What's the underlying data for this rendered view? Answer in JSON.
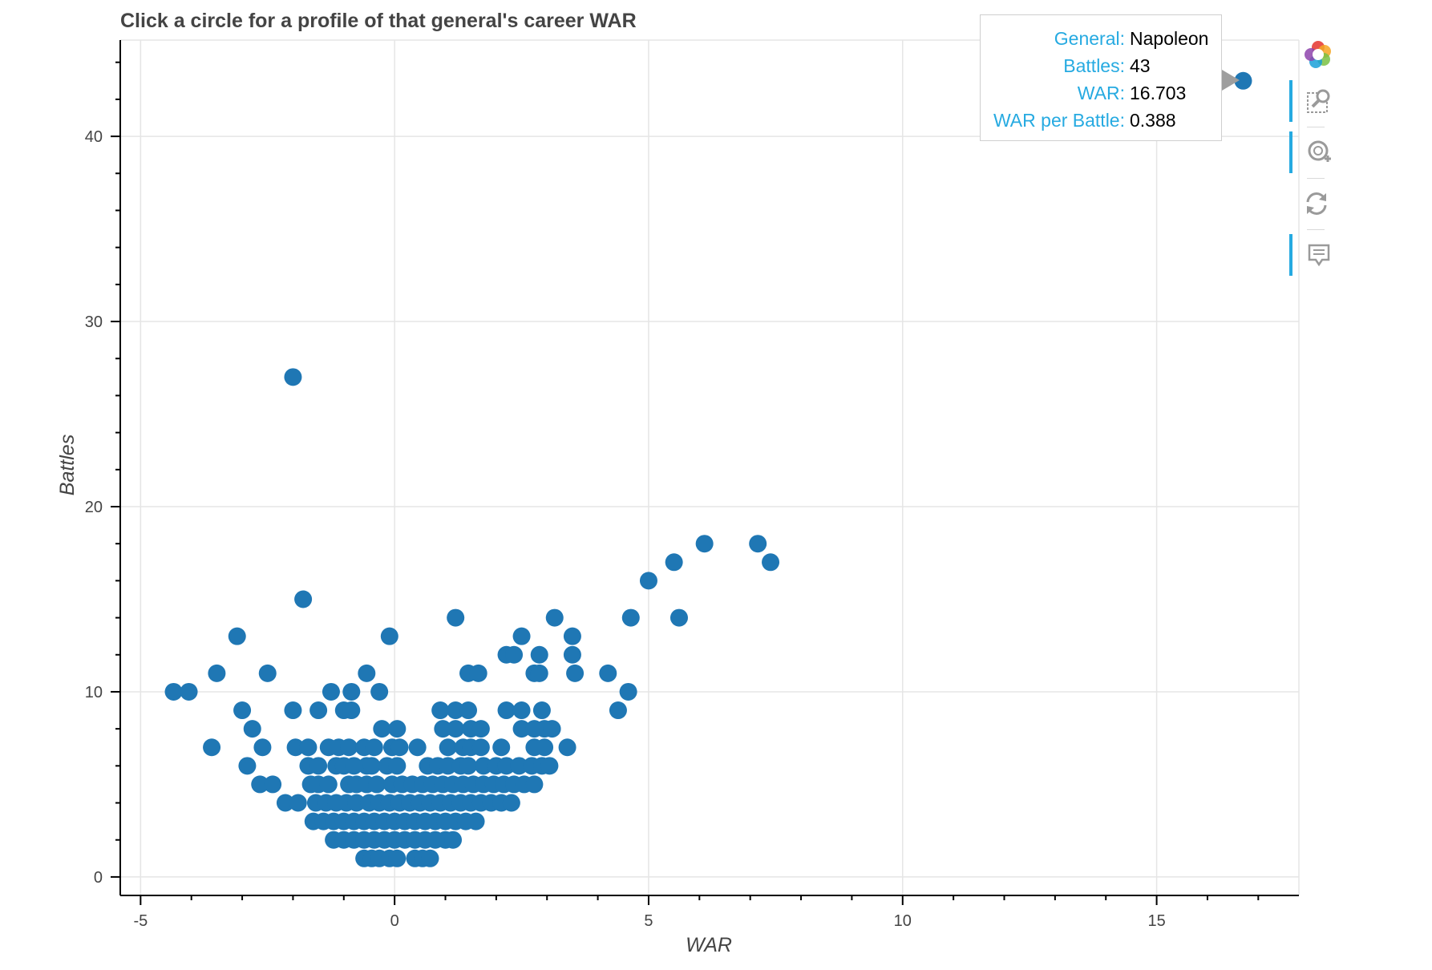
{
  "chart_data": {
    "type": "scatter",
    "title": "Click a circle for a profile of that general's career WAR",
    "xlabel": "WAR",
    "ylabel": "Battles",
    "xlim": [
      -5.4,
      17.8
    ],
    "ylim": [
      -1,
      45.2
    ],
    "xticks": [
      -5,
      0,
      5,
      10,
      15
    ],
    "yticks": [
      0,
      10,
      20,
      30,
      40
    ],
    "grid": true,
    "marker_color": "#1f77b4",
    "points": [
      [
        16.703,
        43
      ],
      [
        -2.0,
        27
      ],
      [
        -1.8,
        15
      ],
      [
        6.1,
        18
      ],
      [
        7.15,
        18
      ],
      [
        7.4,
        17
      ],
      [
        5.5,
        17
      ],
      [
        5.0,
        16
      ],
      [
        -0.1,
        13
      ],
      [
        -3.1,
        13
      ],
      [
        1.2,
        14
      ],
      [
        3.15,
        14
      ],
      [
        4.65,
        14
      ],
      [
        5.6,
        14
      ],
      [
        -3.5,
        11
      ],
      [
        -2.5,
        11
      ],
      [
        -0.55,
        11
      ],
      [
        1.45,
        11
      ],
      [
        1.65,
        11
      ],
      [
        2.75,
        11
      ],
      [
        2.85,
        11
      ],
      [
        3.55,
        11
      ],
      [
        4.2,
        11
      ],
      [
        -4.35,
        10
      ],
      [
        -4.05,
        10
      ],
      [
        -1.25,
        10
      ],
      [
        -0.85,
        10
      ],
      [
        -0.3,
        10
      ],
      [
        4.6,
        10
      ],
      [
        2.2,
        12
      ],
      [
        2.35,
        12
      ],
      [
        2.85,
        12
      ],
      [
        3.5,
        12
      ],
      [
        2.5,
        13
      ],
      [
        3.5,
        13
      ],
      [
        -3.0,
        9
      ],
      [
        -2.0,
        9
      ],
      [
        -1.5,
        9
      ],
      [
        -1.0,
        9
      ],
      [
        -0.85,
        9
      ],
      [
        0.9,
        9
      ],
      [
        1.2,
        9
      ],
      [
        1.45,
        9
      ],
      [
        2.2,
        9
      ],
      [
        2.5,
        9
      ],
      [
        2.9,
        9
      ],
      [
        4.4,
        9
      ],
      [
        -2.8,
        8
      ],
      [
        -0.25,
        8
      ],
      [
        0.05,
        8
      ],
      [
        0.95,
        8
      ],
      [
        1.2,
        8
      ],
      [
        1.5,
        8
      ],
      [
        1.7,
        8
      ],
      [
        2.5,
        8
      ],
      [
        2.75,
        8
      ],
      [
        2.95,
        8
      ],
      [
        3.1,
        8
      ],
      [
        -3.6,
        7
      ],
      [
        -2.6,
        7
      ],
      [
        -1.95,
        7
      ],
      [
        -1.7,
        7
      ],
      [
        -1.3,
        7
      ],
      [
        -1.1,
        7
      ],
      [
        -0.9,
        7
      ],
      [
        -0.6,
        7
      ],
      [
        -0.4,
        7
      ],
      [
        -0.05,
        7
      ],
      [
        0.1,
        7
      ],
      [
        0.45,
        7
      ],
      [
        1.05,
        7
      ],
      [
        1.35,
        7
      ],
      [
        1.5,
        7
      ],
      [
        1.7,
        7
      ],
      [
        2.1,
        7
      ],
      [
        2.75,
        7
      ],
      [
        2.95,
        7
      ],
      [
        3.4,
        7
      ],
      [
        -2.9,
        6
      ],
      [
        -1.7,
        6
      ],
      [
        -1.5,
        6
      ],
      [
        -1.15,
        6
      ],
      [
        -1.0,
        6
      ],
      [
        -0.8,
        6
      ],
      [
        -0.55,
        6
      ],
      [
        -0.45,
        6
      ],
      [
        -0.15,
        6
      ],
      [
        0.05,
        6
      ],
      [
        0.65,
        6
      ],
      [
        0.85,
        6
      ],
      [
        1.05,
        6
      ],
      [
        1.3,
        6
      ],
      [
        1.45,
        6
      ],
      [
        1.75,
        6
      ],
      [
        2.0,
        6
      ],
      [
        2.2,
        6
      ],
      [
        2.45,
        6
      ],
      [
        2.7,
        6
      ],
      [
        2.9,
        6
      ],
      [
        3.05,
        6
      ],
      [
        -2.65,
        5
      ],
      [
        -2.4,
        5
      ],
      [
        -1.65,
        5
      ],
      [
        -1.5,
        5
      ],
      [
        -1.3,
        5
      ],
      [
        -0.9,
        5
      ],
      [
        -0.75,
        5
      ],
      [
        -0.55,
        5
      ],
      [
        -0.35,
        5
      ],
      [
        -0.05,
        5
      ],
      [
        0.15,
        5
      ],
      [
        0.35,
        5
      ],
      [
        0.55,
        5
      ],
      [
        0.75,
        5
      ],
      [
        0.95,
        5
      ],
      [
        1.15,
        5
      ],
      [
        1.35,
        5
      ],
      [
        1.55,
        5
      ],
      [
        1.75,
        5
      ],
      [
        1.95,
        5
      ],
      [
        2.15,
        5
      ],
      [
        2.35,
        5
      ],
      [
        2.55,
        5
      ],
      [
        2.75,
        5
      ],
      [
        -2.15,
        4
      ],
      [
        -1.9,
        4
      ],
      [
        -1.55,
        4
      ],
      [
        -1.35,
        4
      ],
      [
        -1.15,
        4
      ],
      [
        -0.95,
        4
      ],
      [
        -0.75,
        4
      ],
      [
        -0.5,
        4
      ],
      [
        -0.3,
        4
      ],
      [
        -0.1,
        4
      ],
      [
        0.1,
        4
      ],
      [
        0.3,
        4
      ],
      [
        0.5,
        4
      ],
      [
        0.7,
        4
      ],
      [
        0.9,
        4
      ],
      [
        1.1,
        4
      ],
      [
        1.3,
        4
      ],
      [
        1.5,
        4
      ],
      [
        1.7,
        4
      ],
      [
        1.9,
        4
      ],
      [
        2.1,
        4
      ],
      [
        2.3,
        4
      ],
      [
        -1.6,
        3
      ],
      [
        -1.4,
        3
      ],
      [
        -1.2,
        3
      ],
      [
        -1.0,
        3
      ],
      [
        -0.8,
        3
      ],
      [
        -0.6,
        3
      ],
      [
        -0.4,
        3
      ],
      [
        -0.2,
        3
      ],
      [
        0.0,
        3
      ],
      [
        0.2,
        3
      ],
      [
        0.4,
        3
      ],
      [
        0.6,
        3
      ],
      [
        0.8,
        3
      ],
      [
        1.0,
        3
      ],
      [
        1.2,
        3
      ],
      [
        1.4,
        3
      ],
      [
        1.6,
        3
      ],
      [
        -1.2,
        2
      ],
      [
        -1.0,
        2
      ],
      [
        -0.8,
        2
      ],
      [
        -0.6,
        2
      ],
      [
        -0.4,
        2
      ],
      [
        -0.2,
        2
      ],
      [
        0.0,
        2
      ],
      [
        0.2,
        2
      ],
      [
        0.4,
        2
      ],
      [
        0.6,
        2
      ],
      [
        0.8,
        2
      ],
      [
        1.0,
        2
      ],
      [
        1.15,
        2
      ],
      [
        -0.6,
        1
      ],
      [
        -0.45,
        1
      ],
      [
        -0.3,
        1
      ],
      [
        -0.1,
        1
      ],
      [
        0.05,
        1
      ],
      [
        0.4,
        1
      ],
      [
        0.55,
        1
      ],
      [
        0.7,
        1
      ]
    ]
  },
  "tooltip": {
    "rows": [
      {
        "key": "General:",
        "value": "Napoleon"
      },
      {
        "key": "Battles:",
        "value": "43"
      },
      {
        "key": "WAR:",
        "value": "16.703"
      },
      {
        "key": "WAR per Battle:",
        "value": "0.388"
      }
    ]
  },
  "toolbar": {
    "tools": [
      {
        "name": "bokeh-logo-icon",
        "active": false
      },
      {
        "name": "box-zoom-icon",
        "active": true
      },
      {
        "name": "wheel-zoom-icon",
        "active": true
      },
      {
        "name": "reset-icon",
        "active": false
      },
      {
        "name": "hover-icon",
        "active": true
      }
    ]
  },
  "colors": {
    "marker": "#1f77b4",
    "tooltip_key": "#26aae1",
    "grid": "#e5e5e5",
    "axis": "#000000"
  }
}
